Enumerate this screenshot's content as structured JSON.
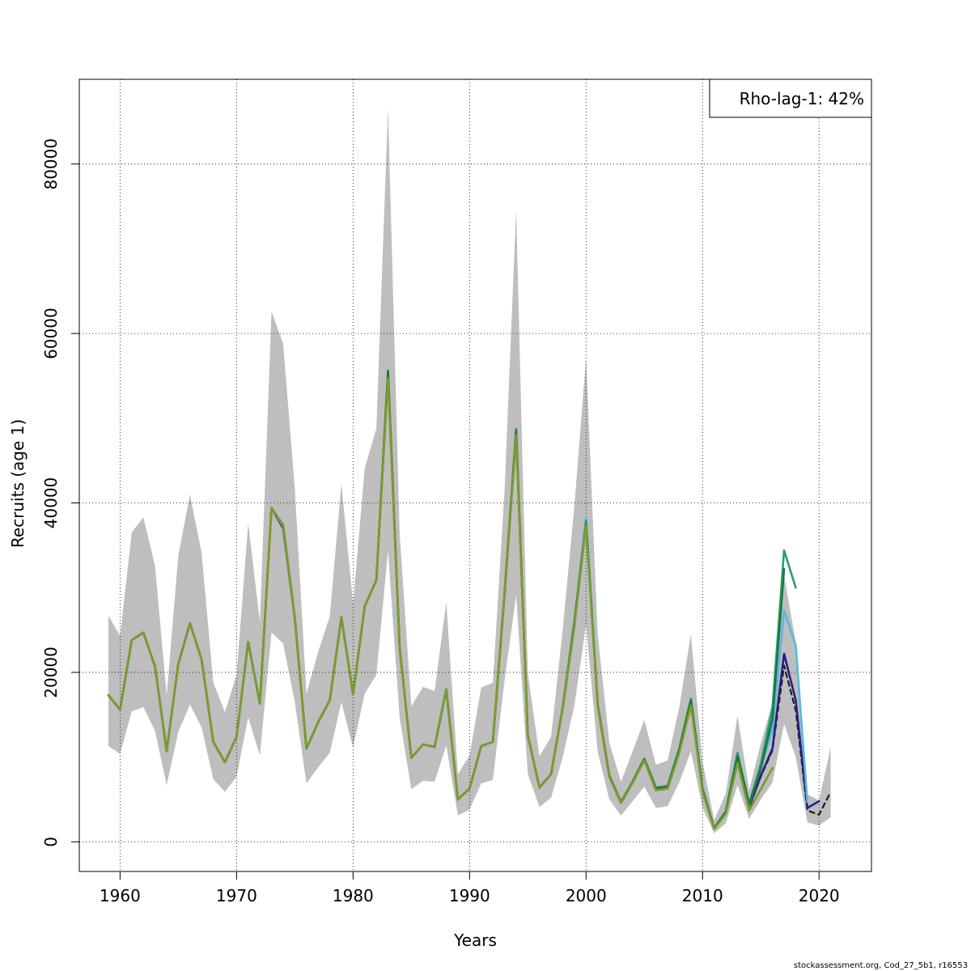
{
  "chart_data": {
    "type": "line",
    "xlabel": "Years",
    "ylabel": "Recruits (age 1)",
    "xlim": [
      1956.5,
      2024.5
    ],
    "ylim": [
      -3500,
      90000
    ],
    "x_ticks": [
      "1960",
      "1970",
      "1980",
      "1990",
      "2000",
      "2010",
      "2020"
    ],
    "y_ticks": [
      "0",
      "20000",
      "40000",
      "60000",
      "80000"
    ],
    "grid": true,
    "legend": {
      "text": "Rho-lag-1: 42%",
      "position": "top-right"
    },
    "confidence_band": {
      "color": "#bebebe",
      "x": [
        1959,
        1960,
        1961,
        1962,
        1963,
        1964,
        1965,
        1966,
        1967,
        1968,
        1969,
        1970,
        1971,
        1972,
        1973,
        1974,
        1975,
        1976,
        1977,
        1978,
        1979,
        1980,
        1981,
        1982,
        1983,
        1984,
        1985,
        1986,
        1987,
        1988,
        1989,
        1990,
        1991,
        1992,
        1993,
        1994,
        1995,
        1996,
        1997,
        1998,
        1999,
        2000,
        2001,
        2002,
        2003,
        2004,
        2005,
        2006,
        2007,
        2008,
        2009,
        2010,
        2011,
        2012,
        2013,
        2014,
        2015,
        2016,
        2017,
        2018,
        2019,
        2020,
        2021
      ],
      "lower": [
        11300,
        10400,
        15400,
        15900,
        13100,
        6700,
        13000,
        16200,
        13500,
        7400,
        5900,
        7700,
        14700,
        10200,
        24700,
        23400,
        16500,
        6900,
        8800,
        10500,
        16500,
        11100,
        17500,
        19700,
        34400,
        14600,
        6200,
        7200,
        7100,
        11400,
        3100,
        3800,
        6900,
        7300,
        19000,
        29100,
        8000,
        4100,
        5200,
        10000,
        16100,
        25600,
        10600,
        5000,
        3100,
        4800,
        6500,
        4000,
        4200,
        7000,
        10700,
        4000,
        1000,
        2200,
        6700,
        2700,
        5000,
        7000,
        13900,
        10000,
        2300,
        1900,
        2900
      ],
      "upper": [
        26700,
        24300,
        36500,
        38300,
        32600,
        17300,
        33800,
        41000,
        34100,
        18800,
        15300,
        19700,
        37600,
        26000,
        62600,
        58800,
        41700,
        17500,
        22400,
        26600,
        42300,
        28100,
        44100,
        48800,
        86600,
        36400,
        16000,
        18300,
        17800,
        28300,
        8000,
        10200,
        18200,
        18800,
        41400,
        74600,
        20000,
        10100,
        12400,
        25100,
        39700,
        57100,
        24500,
        11700,
        7100,
        10700,
        14400,
        9100,
        9600,
        15900,
        24500,
        9400,
        2600,
        5700,
        14900,
        6100,
        11600,
        16400,
        31500,
        23500,
        5600,
        4900,
        11200
      ]
    },
    "series": [
      {
        "color": "#1c1c1c",
        "dash": true,
        "x": [
          1959,
          1960,
          1961,
          1962,
          1963,
          1964,
          1965,
          1966,
          1967,
          1968,
          1969,
          1970,
          1971,
          1972,
          1973,
          1974,
          1975,
          1976,
          1977,
          1978,
          1979,
          1980,
          1981,
          1982,
          1983,
          1984,
          1985,
          1986,
          1987,
          1988,
          1989,
          1990,
          1991,
          1992,
          1993,
          1994,
          1995,
          1996,
          1997,
          1998,
          1999,
          2000,
          2001,
          2002,
          2003,
          2004,
          2005,
          2006,
          2007,
          2008,
          2009,
          2010,
          2011,
          2012,
          2013,
          2014,
          2015,
          2016,
          2017,
          2018,
          2019,
          2020,
          2021
        ],
        "values": [
          17300,
          15600,
          23800,
          24700,
          20700,
          10700,
          21000,
          25800,
          21500,
          11800,
          9400,
          12400,
          23600,
          16300,
          39400,
          37100,
          26400,
          11000,
          14100,
          16700,
          26500,
          17400,
          27800,
          30900,
          55200,
          22900,
          9900,
          11500,
          11200,
          18000,
          5000,
          6300,
          11300,
          11800,
          29100,
          48100,
          12600,
          6400,
          8000,
          15800,
          25500,
          38000,
          16100,
          7700,
          4600,
          7000,
          9600,
          6100,
          6300,
          10600,
          16500,
          6200,
          1600,
          3500,
          9900,
          4000,
          7700,
          10800,
          20800,
          15500,
          3700,
          3200,
          5900
        ]
      },
      {
        "color": "#2a1e82",
        "dash": false,
        "x": [
          1959,
          1960,
          1961,
          1962,
          1963,
          1964,
          1965,
          1966,
          1967,
          1968,
          1969,
          1970,
          1971,
          1972,
          1973,
          1974,
          1975,
          1976,
          1977,
          1978,
          1979,
          1980,
          1981,
          1982,
          1983,
          1984,
          1985,
          1986,
          1987,
          1988,
          1989,
          1990,
          1991,
          1992,
          1993,
          1994,
          1995,
          1996,
          1997,
          1998,
          1999,
          2000,
          2001,
          2002,
          2003,
          2004,
          2005,
          2006,
          2007,
          2008,
          2009,
          2010,
          2011,
          2012,
          2013,
          2014,
          2015,
          2016,
          2017,
          2018,
          2019,
          2020
        ],
        "values": [
          17300,
          15600,
          23800,
          24700,
          20700,
          10700,
          21000,
          25800,
          21500,
          11800,
          9400,
          12400,
          23600,
          16300,
          39400,
          37000,
          26400,
          11000,
          14100,
          16700,
          26500,
          17400,
          27800,
          30900,
          55200,
          22900,
          9900,
          11500,
          11200,
          18000,
          5000,
          6300,
          11300,
          11800,
          29100,
          48200,
          12600,
          6400,
          8000,
          15800,
          25600,
          38000,
          16100,
          7700,
          4600,
          7000,
          9700,
          6100,
          6300,
          10600,
          16600,
          6200,
          1600,
          3500,
          9900,
          4100,
          7800,
          11000,
          22200,
          16700,
          4000,
          4800
        ]
      },
      {
        "color": "#58b8e0",
        "dash": false,
        "x": [
          1959,
          1960,
          1961,
          1962,
          1963,
          1964,
          1965,
          1966,
          1967,
          1968,
          1969,
          1970,
          1971,
          1972,
          1973,
          1974,
          1975,
          1976,
          1977,
          1978,
          1979,
          1980,
          1981,
          1982,
          1983,
          1984,
          1985,
          1986,
          1987,
          1988,
          1989,
          1990,
          1991,
          1992,
          1993,
          1994,
          1995,
          1996,
          1997,
          1998,
          1999,
          2000,
          2001,
          2002,
          2003,
          2004,
          2005,
          2006,
          2007,
          2008,
          2009,
          2010,
          2011,
          2012,
          2013,
          2014,
          2015,
          2016,
          2017,
          2018,
          2019
        ],
        "values": [
          17300,
          15600,
          23800,
          24700,
          20700,
          10700,
          21000,
          25800,
          21500,
          11800,
          9400,
          12400,
          23600,
          16300,
          39400,
          37200,
          26400,
          11000,
          14100,
          16700,
          26500,
          17400,
          27800,
          30900,
          55300,
          22900,
          9900,
          11500,
          11200,
          18000,
          5000,
          6300,
          11300,
          11800,
          29200,
          48300,
          12600,
          6400,
          8000,
          15900,
          25900,
          38300,
          16300,
          7800,
          4700,
          7100,
          9800,
          6300,
          6500,
          10800,
          16800,
          6300,
          1600,
          3600,
          10400,
          4300,
          8800,
          13200,
          27300,
          23200,
          4700
        ]
      },
      {
        "color": "#2a9d72",
        "dash": false,
        "x": [
          1959,
          1960,
          1961,
          1962,
          1963,
          1964,
          1965,
          1966,
          1967,
          1968,
          1969,
          1970,
          1971,
          1972,
          1973,
          1974,
          1975,
          1976,
          1977,
          1978,
          1979,
          1980,
          1981,
          1982,
          1983,
          1984,
          1985,
          1986,
          1987,
          1988,
          1989,
          1990,
          1991,
          1992,
          1993,
          1994,
          1995,
          1996,
          1997,
          1998,
          1999,
          2000,
          2001,
          2002,
          2003,
          2004,
          2005,
          2006,
          2007,
          2008,
          2009,
          2010,
          2011,
          2012,
          2013,
          2014,
          2015,
          2016,
          2017,
          2018
        ],
        "values": [
          17300,
          15600,
          23800,
          24700,
          20700,
          10700,
          21000,
          25800,
          21500,
          11800,
          9400,
          12400,
          23600,
          16300,
          39400,
          37300,
          26400,
          11000,
          14100,
          16700,
          26500,
          17400,
          27800,
          30900,
          55400,
          22900,
          9900,
          11500,
          11200,
          18000,
          5000,
          6300,
          11300,
          11800,
          29200,
          48500,
          12600,
          6400,
          8000,
          15900,
          26000,
          37900,
          16300,
          7800,
          4700,
          7100,
          9800,
          6400,
          6600,
          11000,
          16900,
          6300,
          1600,
          3600,
          10500,
          4500,
          9200,
          15800,
          34400,
          30000
        ]
      },
      {
        "color": "#1b7a3e",
        "dash": false,
        "x": [
          1959,
          1960,
          1961,
          1962,
          1963,
          1964,
          1965,
          1966,
          1967,
          1968,
          1969,
          1970,
          1971,
          1972,
          1973,
          1974,
          1975,
          1976,
          1977,
          1978,
          1979,
          1980,
          1981,
          1982,
          1983,
          1984,
          1985,
          1986,
          1987,
          1988,
          1989,
          1990,
          1991,
          1992,
          1993,
          1994,
          1995,
          1996,
          1997,
          1998,
          1999,
          2000,
          2001,
          2002,
          2003,
          2004,
          2005,
          2006,
          2007,
          2008,
          2009,
          2010,
          2011,
          2012,
          2013,
          2014,
          2015,
          2016,
          2017
        ],
        "values": [
          17300,
          15600,
          23800,
          24700,
          20700,
          10700,
          21000,
          25800,
          21500,
          11800,
          9400,
          12400,
          23600,
          16300,
          39400,
          37400,
          26400,
          11000,
          14100,
          16700,
          26500,
          17400,
          27800,
          30900,
          55600,
          22900,
          9900,
          11500,
          11200,
          18000,
          5000,
          6300,
          11300,
          11800,
          29300,
          48700,
          12600,
          6400,
          8000,
          15900,
          25900,
          37500,
          16200,
          7800,
          4700,
          7100,
          9800,
          6300,
          6500,
          10900,
          16700,
          6200,
          1600,
          3600,
          10100,
          4400,
          8600,
          14500,
          32200
        ]
      },
      {
        "color": "#7f9a2a",
        "dash": false,
        "x": [
          1959,
          1960,
          1961,
          1962,
          1963,
          1964,
          1965,
          1966,
          1967,
          1968,
          1969,
          1970,
          1971,
          1972,
          1973,
          1974,
          1975,
          1976,
          1977,
          1978,
          1979,
          1980,
          1981,
          1982,
          1983,
          1984,
          1985,
          1986,
          1987,
          1988,
          1989,
          1990,
          1991,
          1992,
          1993,
          1994,
          1995,
          1996,
          1997,
          1998,
          1999,
          2000,
          2001,
          2002,
          2003,
          2004,
          2005,
          2006,
          2007,
          2008,
          2009,
          2010,
          2011,
          2012,
          2013,
          2014,
          2015,
          2016
        ],
        "values": [
          17300,
          15600,
          23800,
          24700,
          20700,
          10700,
          21000,
          25800,
          21500,
          11800,
          9400,
          12400,
          23600,
          16300,
          39400,
          37400,
          26400,
          11000,
          14100,
          16700,
          26500,
          17400,
          27800,
          30900,
          54700,
          22900,
          9900,
          11500,
          11200,
          18000,
          5000,
          6300,
          11300,
          11800,
          29200,
          48000,
          12600,
          6400,
          8000,
          15800,
          25500,
          37400,
          16100,
          7700,
          4600,
          7000,
          9600,
          6100,
          6300,
          10500,
          16100,
          5900,
          1500,
          3300,
          9300,
          3700,
          6200,
          8700
        ]
      }
    ]
  },
  "footer": {
    "text": "stockassessment.org, Cod_27_5b1, r16553"
  }
}
